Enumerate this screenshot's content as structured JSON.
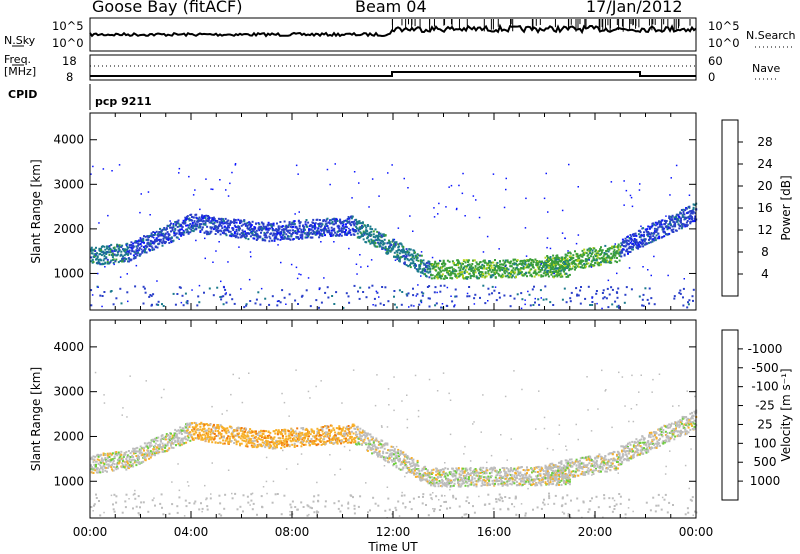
{
  "header": {
    "station": "Goose Bay (fitACF)",
    "beam": "Beam 04",
    "date": "17/Jan/2012"
  },
  "panels": {
    "noise": {
      "left_label": "N.Sky",
      "left_ticks": [
        "10^5",
        "10^0"
      ],
      "right_ticks": [
        "10^5",
        "10^0"
      ],
      "right_label": "N.Search"
    },
    "freq": {
      "left_label": "Freq.",
      "left_unit": "[MHz]",
      "left_ticks": [
        "18",
        "8"
      ],
      "right_ticks": [
        "60",
        "0"
      ],
      "right_label": "Nave"
    },
    "cpid": {
      "label": "CPID",
      "value": "pcp 9211"
    }
  },
  "chart_data": [
    {
      "type": "heatmap",
      "name": "power",
      "ylabel": "Slant Range [km]",
      "yticks": [
        1000,
        2000,
        3000,
        4000
      ],
      "ylim": [
        180,
        4600
      ],
      "xlim": [
        "00:00",
        "24:00"
      ],
      "colorbar": {
        "label": "Power [dB]",
        "ticks": [
          4,
          8,
          12,
          16,
          20,
          24,
          28
        ],
        "colors": [
          "#0a14ff",
          "#2a3fc9",
          "#1b7a8c",
          "#3a9e3a",
          "#b8d61e",
          "#f2a513",
          "#f06a0e",
          "#e81616"
        ]
      },
      "echo_bands": [
        {
          "from": 0.0,
          "to": 1.5,
          "r0": 1400,
          "r1": 1500,
          "level": 2
        },
        {
          "from": 1.5,
          "to": 4.0,
          "r0": 1500,
          "r1": 2150,
          "level": 1
        },
        {
          "from": 4.0,
          "to": 7.0,
          "r0": 2150,
          "r1": 1950,
          "level": 1
        },
        {
          "from": 7.0,
          "to": 10.5,
          "r0": 1950,
          "r1": 2100,
          "level": 1
        },
        {
          "from": 10.5,
          "to": 13.5,
          "r0": 2050,
          "r1": 1100,
          "level": 2
        },
        {
          "from": 13.5,
          "to": 19.0,
          "r0": 1100,
          "r1": 1150,
          "level": 3
        },
        {
          "from": 18.0,
          "to": 21.0,
          "r0": 1200,
          "r1": 1500,
          "level": 3
        },
        {
          "from": 21.0,
          "to": 24.0,
          "r0": 1600,
          "r1": 2400,
          "level": 1
        }
      ]
    },
    {
      "type": "heatmap",
      "name": "velocity",
      "ylabel": "Slant Range [km]",
      "yticks": [
        1000,
        2000,
        3000,
        4000
      ],
      "ylim": [
        180,
        4600
      ],
      "xlim": [
        "00:00",
        "24:00"
      ],
      "xlabel": "Time UT",
      "xticks": [
        "00:00",
        "04:00",
        "08:00",
        "12:00",
        "16:00",
        "20:00",
        "00:00"
      ],
      "colorbar": {
        "label": "Velocity [m s⁻¹]",
        "ticks": [
          "1000",
          "500",
          "100",
          "25",
          "-25",
          "-100",
          "-500",
          "-1000"
        ],
        "colors": [
          "#1a2fd6",
          "#3558b8",
          "#2a8a4a",
          "#6ccf3a",
          "#bdbdbd",
          "#f7b02a",
          "#f27a0c",
          "#e02a10",
          "#e81616"
        ]
      },
      "echo_bands": [
        {
          "from": 0.0,
          "to": 1.5,
          "r0": 1400,
          "r1": 1500,
          "level": 4
        },
        {
          "from": 1.5,
          "to": 4.0,
          "r0": 1500,
          "r1": 2150,
          "level": 4
        },
        {
          "from": 4.0,
          "to": 7.0,
          "r0": 2150,
          "r1": 1950,
          "level": 5
        },
        {
          "from": 7.0,
          "to": 10.5,
          "r0": 1950,
          "r1": 2100,
          "level": 5
        },
        {
          "from": 10.5,
          "to": 13.5,
          "r0": 2050,
          "r1": 1100,
          "level": 4
        },
        {
          "from": 13.5,
          "to": 19.0,
          "r0": 1100,
          "r1": 1150,
          "level": 4
        },
        {
          "from": 18.0,
          "to": 21.0,
          "r0": 1200,
          "r1": 1500,
          "level": 4
        },
        {
          "from": 21.0,
          "to": 24.0,
          "r0": 1600,
          "r1": 2400,
          "level": 4
        }
      ]
    }
  ]
}
